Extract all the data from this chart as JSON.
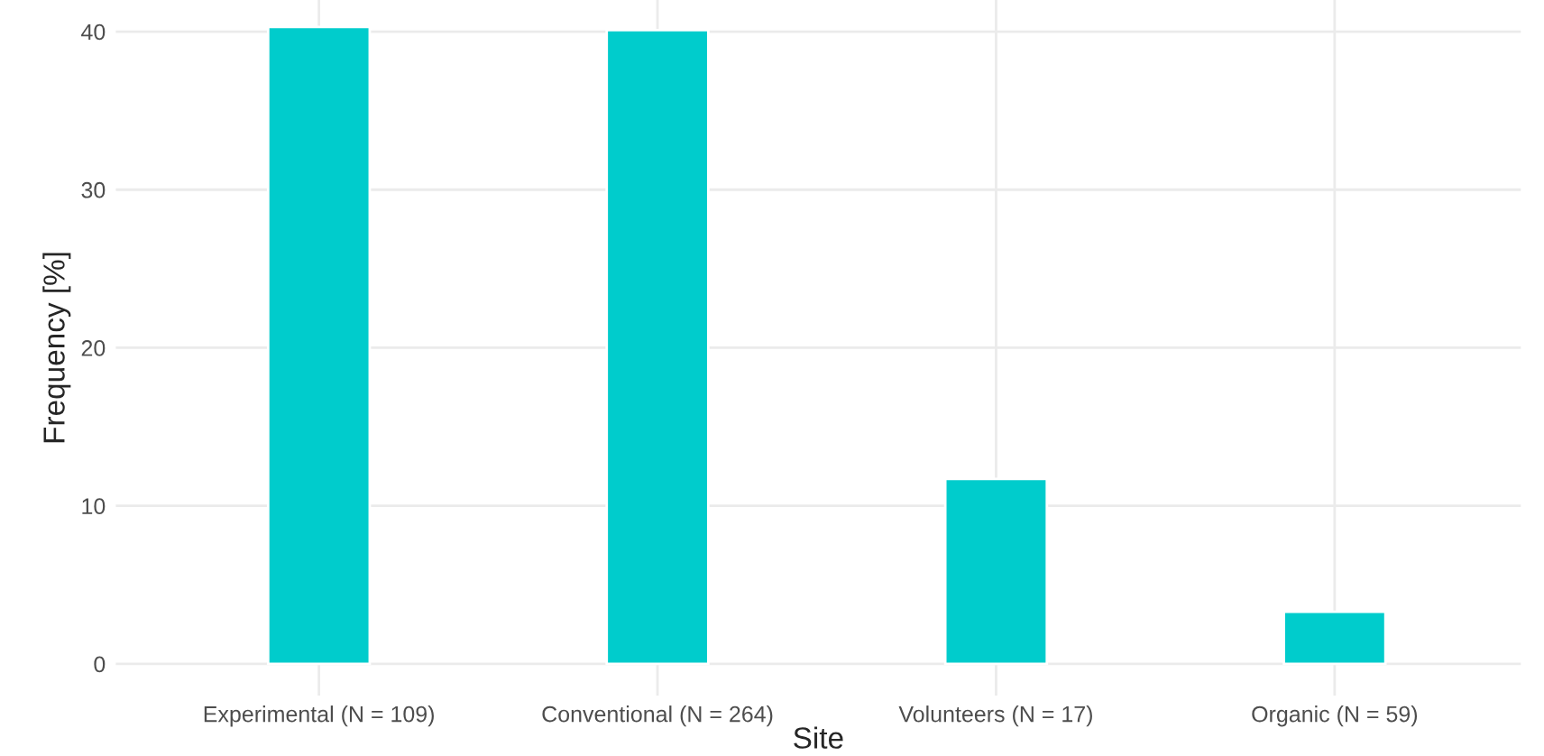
{
  "chart_data": {
    "type": "bar",
    "xlabel": "Site",
    "ylabel": "Frequency [%]",
    "categories": [
      "Experimental (N = 109)",
      "Conventional (N = 264)",
      "Volunteers (N = 17)",
      "Organic (N = 59)"
    ],
    "values": [
      40.3,
      40.1,
      11.7,
      3.3
    ],
    "color": "#00cccc",
    "ylim": [
      -2.0,
      42.0
    ],
    "yticks": [
      0,
      10,
      20,
      30,
      40
    ],
    "grid": true
  }
}
